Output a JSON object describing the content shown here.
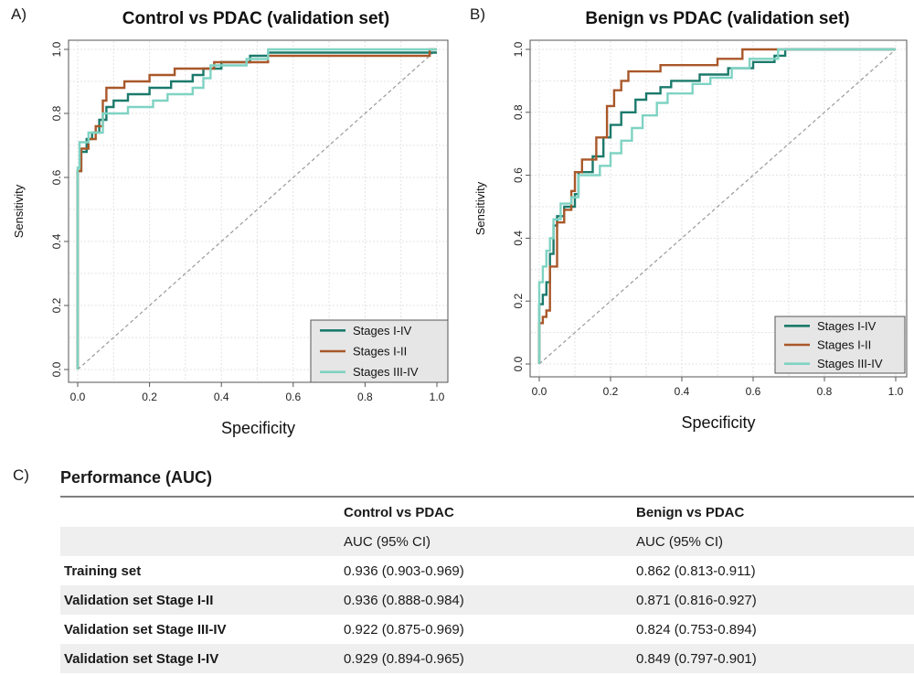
{
  "panel_labels": [
    "A)",
    "B)",
    "C)"
  ],
  "chart_data": [
    {
      "type": "line",
      "title": "Control vs PDAC (validation set)",
      "xlabel": "Specificity",
      "ylabel": "Sensitivity",
      "xlim": [
        1.0,
        0.0
      ],
      "ylim": [
        0.0,
        1.0
      ],
      "xticks": [
        "0.0",
        "0.2",
        "0.4",
        "0.6",
        "0.8",
        "1.0"
      ],
      "yticks": [
        "0.0",
        "0.2",
        "0.4",
        "0.6",
        "0.8",
        "1.0"
      ],
      "grid": true,
      "diagonal": true,
      "legend_position": "bottom-right",
      "series": [
        {
          "name": "Stages I-IV",
          "color": "#1b7a6b",
          "points": [
            [
              1.0,
              0.0
            ],
            [
              1.0,
              0.62
            ],
            [
              0.99,
              0.62
            ],
            [
              0.99,
              0.68
            ],
            [
              0.975,
              0.68
            ],
            [
              0.975,
              0.72
            ],
            [
              0.96,
              0.72
            ],
            [
              0.96,
              0.74
            ],
            [
              0.94,
              0.74
            ],
            [
              0.94,
              0.78
            ],
            [
              0.92,
              0.78
            ],
            [
              0.92,
              0.82
            ],
            [
              0.9,
              0.82
            ],
            [
              0.9,
              0.84
            ],
            [
              0.86,
              0.84
            ],
            [
              0.86,
              0.86
            ],
            [
              0.8,
              0.86
            ],
            [
              0.8,
              0.88
            ],
            [
              0.74,
              0.88
            ],
            [
              0.74,
              0.9
            ],
            [
              0.68,
              0.9
            ],
            [
              0.68,
              0.92
            ],
            [
              0.65,
              0.92
            ],
            [
              0.65,
              0.94
            ],
            [
              0.6,
              0.94
            ],
            [
              0.6,
              0.96
            ],
            [
              0.52,
              0.96
            ],
            [
              0.52,
              0.98
            ],
            [
              0.47,
              0.98
            ],
            [
              0.47,
              0.99
            ],
            [
              0.0,
              0.99
            ]
          ]
        },
        {
          "name": "Stages I-II",
          "color": "#a9582a",
          "points": [
            [
              1.0,
              0.0
            ],
            [
              1.0,
              0.62
            ],
            [
              0.99,
              0.62
            ],
            [
              0.99,
              0.69
            ],
            [
              0.97,
              0.69
            ],
            [
              0.97,
              0.72
            ],
            [
              0.95,
              0.72
            ],
            [
              0.95,
              0.76
            ],
            [
              0.93,
              0.76
            ],
            [
              0.93,
              0.84
            ],
            [
              0.92,
              0.84
            ],
            [
              0.92,
              0.88
            ],
            [
              0.87,
              0.88
            ],
            [
              0.87,
              0.9
            ],
            [
              0.8,
              0.9
            ],
            [
              0.8,
              0.92
            ],
            [
              0.73,
              0.92
            ],
            [
              0.73,
              0.94
            ],
            [
              0.62,
              0.94
            ],
            [
              0.62,
              0.96
            ],
            [
              0.47,
              0.96
            ],
            [
              0.47,
              0.98
            ],
            [
              0.02,
              0.98
            ],
            [
              0.02,
              1.0
            ],
            [
              0.0,
              1.0
            ]
          ]
        },
        {
          "name": "Stages III-IV",
          "color": "#7fd3c3",
          "points": [
            [
              1.0,
              0.0
            ],
            [
              1.0,
              0.63
            ],
            [
              0.995,
              0.63
            ],
            [
              0.995,
              0.71
            ],
            [
              0.97,
              0.71
            ],
            [
              0.97,
              0.74
            ],
            [
              0.93,
              0.74
            ],
            [
              0.93,
              0.8
            ],
            [
              0.86,
              0.8
            ],
            [
              0.86,
              0.82
            ],
            [
              0.79,
              0.82
            ],
            [
              0.79,
              0.84
            ],
            [
              0.75,
              0.84
            ],
            [
              0.75,
              0.86
            ],
            [
              0.68,
              0.86
            ],
            [
              0.68,
              0.88
            ],
            [
              0.65,
              0.88
            ],
            [
              0.65,
              0.91
            ],
            [
              0.63,
              0.91
            ],
            [
              0.63,
              0.95
            ],
            [
              0.53,
              0.95
            ],
            [
              0.53,
              0.97
            ],
            [
              0.47,
              0.97
            ],
            [
              0.47,
              1.0
            ],
            [
              0.0,
              1.0
            ]
          ]
        }
      ]
    },
    {
      "type": "line",
      "title": "Benign vs PDAC (validation set)",
      "xlabel": "Specificity",
      "ylabel": "Sensitivity",
      "xlim": [
        1.0,
        0.0
      ],
      "ylim": [
        0.0,
        1.0
      ],
      "xticks": [
        "0.0",
        "0.2",
        "0.4",
        "0.6",
        "0.8",
        "1.0"
      ],
      "yticks": [
        "0.0",
        "0.2",
        "0.4",
        "0.6",
        "0.8",
        "1.0"
      ],
      "grid": true,
      "diagonal": true,
      "legend_position": "bottom-right",
      "series": [
        {
          "name": "Stages I-IV",
          "color": "#1b7a6b",
          "points": [
            [
              1.0,
              0.0
            ],
            [
              1.0,
              0.19
            ],
            [
              0.99,
              0.19
            ],
            [
              0.99,
              0.22
            ],
            [
              0.98,
              0.22
            ],
            [
              0.98,
              0.26
            ],
            [
              0.97,
              0.26
            ],
            [
              0.97,
              0.35
            ],
            [
              0.96,
              0.35
            ],
            [
              0.96,
              0.44
            ],
            [
              0.95,
              0.44
            ],
            [
              0.95,
              0.47
            ],
            [
              0.93,
              0.47
            ],
            [
              0.93,
              0.5
            ],
            [
              0.9,
              0.5
            ],
            [
              0.9,
              0.54
            ],
            [
              0.89,
              0.54
            ],
            [
              0.89,
              0.61
            ],
            [
              0.85,
              0.61
            ],
            [
              0.85,
              0.66
            ],
            [
              0.82,
              0.66
            ],
            [
              0.82,
              0.72
            ],
            [
              0.8,
              0.72
            ],
            [
              0.8,
              0.76
            ],
            [
              0.77,
              0.76
            ],
            [
              0.77,
              0.8
            ],
            [
              0.73,
              0.8
            ],
            [
              0.73,
              0.84
            ],
            [
              0.7,
              0.84
            ],
            [
              0.7,
              0.86
            ],
            [
              0.66,
              0.86
            ],
            [
              0.66,
              0.88
            ],
            [
              0.63,
              0.88
            ],
            [
              0.63,
              0.9
            ],
            [
              0.55,
              0.9
            ],
            [
              0.55,
              0.92
            ],
            [
              0.47,
              0.92
            ],
            [
              0.47,
              0.94
            ],
            [
              0.4,
              0.94
            ],
            [
              0.4,
              0.96
            ],
            [
              0.34,
              0.96
            ],
            [
              0.34,
              0.98
            ],
            [
              0.31,
              0.98
            ],
            [
              0.31,
              1.0
            ],
            [
              0.0,
              1.0
            ]
          ]
        },
        {
          "name": "Stages I-II",
          "color": "#a9582a",
          "points": [
            [
              1.0,
              0.0
            ],
            [
              1.0,
              0.13
            ],
            [
              0.99,
              0.13
            ],
            [
              0.99,
              0.15
            ],
            [
              0.98,
              0.15
            ],
            [
              0.98,
              0.17
            ],
            [
              0.97,
              0.17
            ],
            [
              0.97,
              0.31
            ],
            [
              0.95,
              0.31
            ],
            [
              0.95,
              0.45
            ],
            [
              0.93,
              0.45
            ],
            [
              0.93,
              0.49
            ],
            [
              0.91,
              0.49
            ],
            [
              0.91,
              0.55
            ],
            [
              0.9,
              0.55
            ],
            [
              0.9,
              0.61
            ],
            [
              0.88,
              0.61
            ],
            [
              0.88,
              0.65
            ],
            [
              0.84,
              0.65
            ],
            [
              0.84,
              0.72
            ],
            [
              0.81,
              0.72
            ],
            [
              0.81,
              0.82
            ],
            [
              0.79,
              0.82
            ],
            [
              0.79,
              0.87
            ],
            [
              0.77,
              0.87
            ],
            [
              0.77,
              0.9
            ],
            [
              0.75,
              0.9
            ],
            [
              0.75,
              0.93
            ],
            [
              0.66,
              0.93
            ],
            [
              0.66,
              0.95
            ],
            [
              0.5,
              0.95
            ],
            [
              0.5,
              0.97
            ],
            [
              0.43,
              0.97
            ],
            [
              0.43,
              1.0
            ],
            [
              0.0,
              1.0
            ]
          ]
        },
        {
          "name": "Stages III-IV",
          "color": "#7fd3c3",
          "points": [
            [
              1.0,
              0.0
            ],
            [
              1.0,
              0.26
            ],
            [
              0.99,
              0.26
            ],
            [
              0.99,
              0.31
            ],
            [
              0.98,
              0.31
            ],
            [
              0.98,
              0.36
            ],
            [
              0.97,
              0.36
            ],
            [
              0.97,
              0.4
            ],
            [
              0.96,
              0.4
            ],
            [
              0.96,
              0.46
            ],
            [
              0.94,
              0.46
            ],
            [
              0.94,
              0.51
            ],
            [
              0.91,
              0.51
            ],
            [
              0.91,
              0.53
            ],
            [
              0.89,
              0.53
            ],
            [
              0.89,
              0.6
            ],
            [
              0.83,
              0.6
            ],
            [
              0.83,
              0.63
            ],
            [
              0.8,
              0.63
            ],
            [
              0.8,
              0.67
            ],
            [
              0.77,
              0.67
            ],
            [
              0.77,
              0.71
            ],
            [
              0.74,
              0.71
            ],
            [
              0.74,
              0.75
            ],
            [
              0.71,
              0.75
            ],
            [
              0.71,
              0.79
            ],
            [
              0.67,
              0.79
            ],
            [
              0.67,
              0.83
            ],
            [
              0.64,
              0.83
            ],
            [
              0.64,
              0.86
            ],
            [
              0.57,
              0.86
            ],
            [
              0.57,
              0.89
            ],
            [
              0.52,
              0.89
            ],
            [
              0.52,
              0.91
            ],
            [
              0.46,
              0.91
            ],
            [
              0.46,
              0.94
            ],
            [
              0.41,
              0.94
            ],
            [
              0.41,
              0.97
            ],
            [
              0.33,
              0.97
            ],
            [
              0.33,
              1.0
            ],
            [
              0.0,
              1.0
            ]
          ]
        }
      ]
    },
    {
      "type": "table",
      "title": "Performance (AUC)",
      "columns": [
        "",
        "Control vs PDAC",
        "Benign vs PDAC"
      ],
      "rows": [
        [
          "",
          "AUC (95% CI)",
          "AUC (95% CI)"
        ],
        [
          "Training set",
          "0.936 (0.903-0.969)",
          "0.862 (0.813-0.911)"
        ],
        [
          "Validation set Stage I-II",
          "0.936 (0.888-0.984)",
          "0.871 (0.816-0.927)"
        ],
        [
          "Validation set Stage III-IV",
          "0.922 (0.875-0.969)",
          "0.824 (0.753-0.894)"
        ],
        [
          "Validation set Stage I-IV",
          "0.929 (0.894-0.965)",
          "0.849 (0.797-0.901)"
        ]
      ]
    }
  ]
}
